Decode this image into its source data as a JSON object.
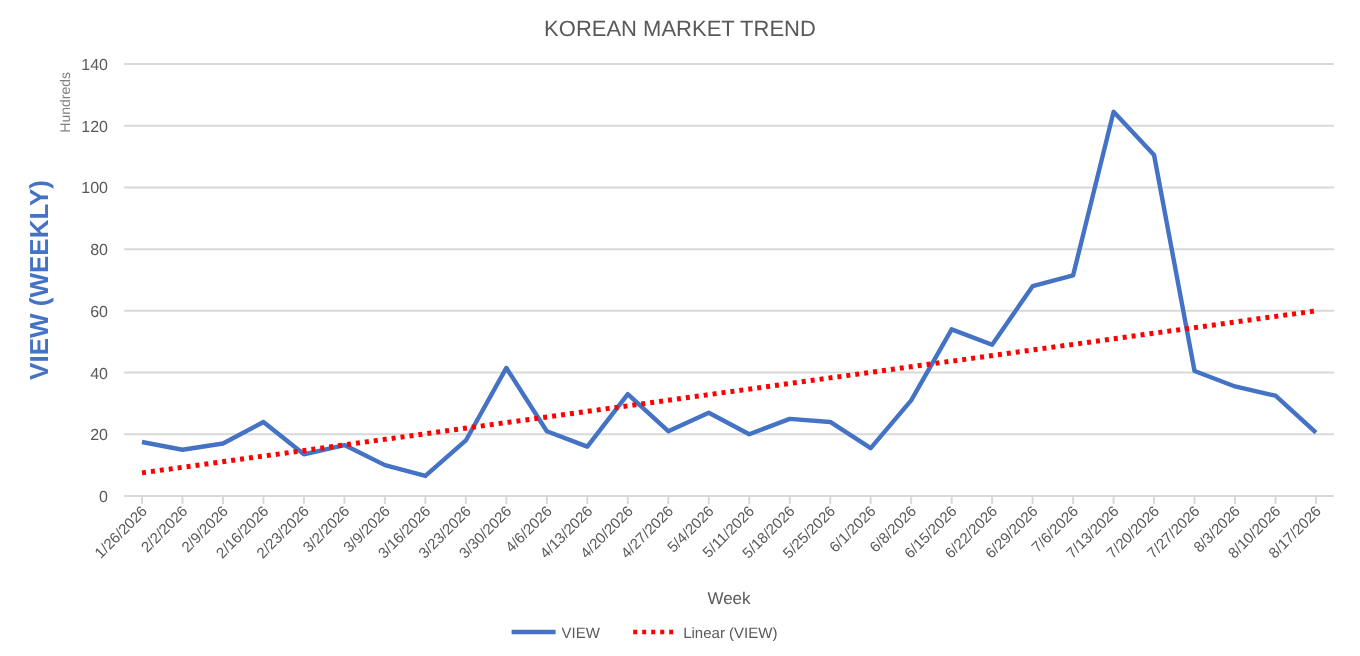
{
  "chart_data": {
    "type": "line",
    "title": "KOREAN MARKET TREND",
    "xlabel": "Week",
    "ylabel": "VIEW (WEEKLY)",
    "annotations": [
      "Hundreds"
    ],
    "categories": [
      "1/26/2026",
      "2/2/2026",
      "2/9/2026",
      "2/16/2026",
      "2/23/2026",
      "3/2/2026",
      "3/9/2026",
      "3/16/2026",
      "3/23/2026",
      "3/30/2026",
      "4/6/2026",
      "4/13/2026",
      "4/20/2026",
      "4/27/2026",
      "5/4/2026",
      "5/11/2026",
      "5/18/2026",
      "5/25/2026",
      "6/1/2026",
      "6/8/2026",
      "6/15/2026",
      "6/22/2026",
      "6/29/2026",
      "7/6/2026",
      "7/13/2026",
      "7/20/2026",
      "7/27/2026",
      "8/3/2026",
      "8/10/2026",
      "8/17/2026"
    ],
    "series": [
      {
        "name": "VIEW",
        "color": "#4472c4",
        "line_style": "solid",
        "values": [
          17.5,
          15,
          17,
          24,
          13.5,
          16.5,
          10,
          6.5,
          18,
          41.5,
          21,
          16,
          33,
          21,
          27,
          20,
          25,
          24,
          15.5,
          31,
          54,
          49,
          68,
          71.5,
          124.5,
          110.5,
          40.5,
          35.5,
          32.5,
          20.5
        ]
      },
      {
        "name": "Linear (VIEW)",
        "color": "#ff0000",
        "line_style": "dotted",
        "x": [
          "1/26/2026",
          "8/17/2026"
        ],
        "values": [
          7.5,
          60
        ]
      }
    ],
    "ylim": [
      0,
      140
    ],
    "yticks": [
      0,
      20,
      40,
      60,
      80,
      100,
      120,
      140
    ],
    "grid": "y",
    "legend": "bottom",
    "marker": "none"
  }
}
